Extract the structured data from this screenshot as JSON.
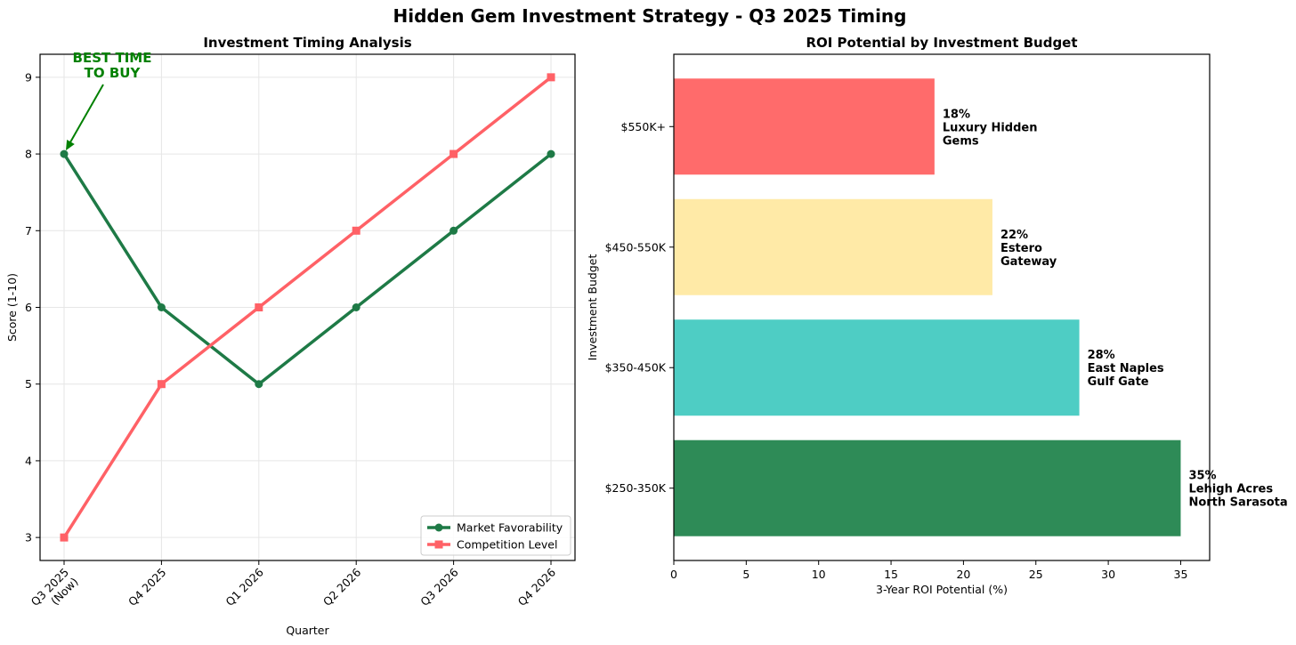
{
  "figure": {
    "title": "Hidden Gem Investment Strategy - Q3 2025 Timing"
  },
  "chart_data": [
    {
      "type": "line",
      "title": "Investment Timing Analysis",
      "xlabel": "Quarter",
      "ylabel": "Score (1-10)",
      "categories": [
        "Q3 2025\n(Now)",
        "Q4 2025",
        "Q1 2026",
        "Q2 2026",
        "Q3 2026",
        "Q4 2026"
      ],
      "ylim": [
        2.7,
        9.3
      ],
      "yticks": [
        3,
        4,
        5,
        6,
        7,
        8,
        9
      ],
      "grid": true,
      "legend": "lower-right",
      "series": [
        {
          "name": "Market Favorability",
          "values": [
            8,
            6,
            5,
            6,
            7,
            8
          ],
          "color": "#1e7a46",
          "marker": "circle"
        },
        {
          "name": "Competition Level",
          "values": [
            3,
            5,
            6,
            7,
            8,
            9
          ],
          "color": "#ff6166",
          "marker": "square"
        }
      ],
      "annotation": {
        "text": "BEST TIME\nTO BUY",
        "target_index": 0,
        "target_value": 8,
        "color": "#008000"
      }
    },
    {
      "type": "bar",
      "orientation": "horizontal",
      "title": "ROI Potential by Investment Budget",
      "xlabel": "3-Year ROI Potential (%)",
      "ylabel": "Investment Budget",
      "categories": [
        "$250-350K",
        "$350-450K",
        "$450-550K",
        "$550K+"
      ],
      "values": [
        35,
        28,
        22,
        18
      ],
      "xlim": [
        0,
        37
      ],
      "xticks": [
        0,
        5,
        10,
        15,
        20,
        25,
        30,
        35
      ],
      "colors": [
        "#2e8b57",
        "#4ecdc4",
        "#ffeaa7",
        "#ff6b6b"
      ],
      "labels": [
        "35%\nLehigh Acres\nNorth Sarasota",
        "28%\nEast Naples\nGulf Gate",
        "22%\nEstero\nGateway",
        "18%\nLuxury Hidden\nGems"
      ]
    }
  ]
}
